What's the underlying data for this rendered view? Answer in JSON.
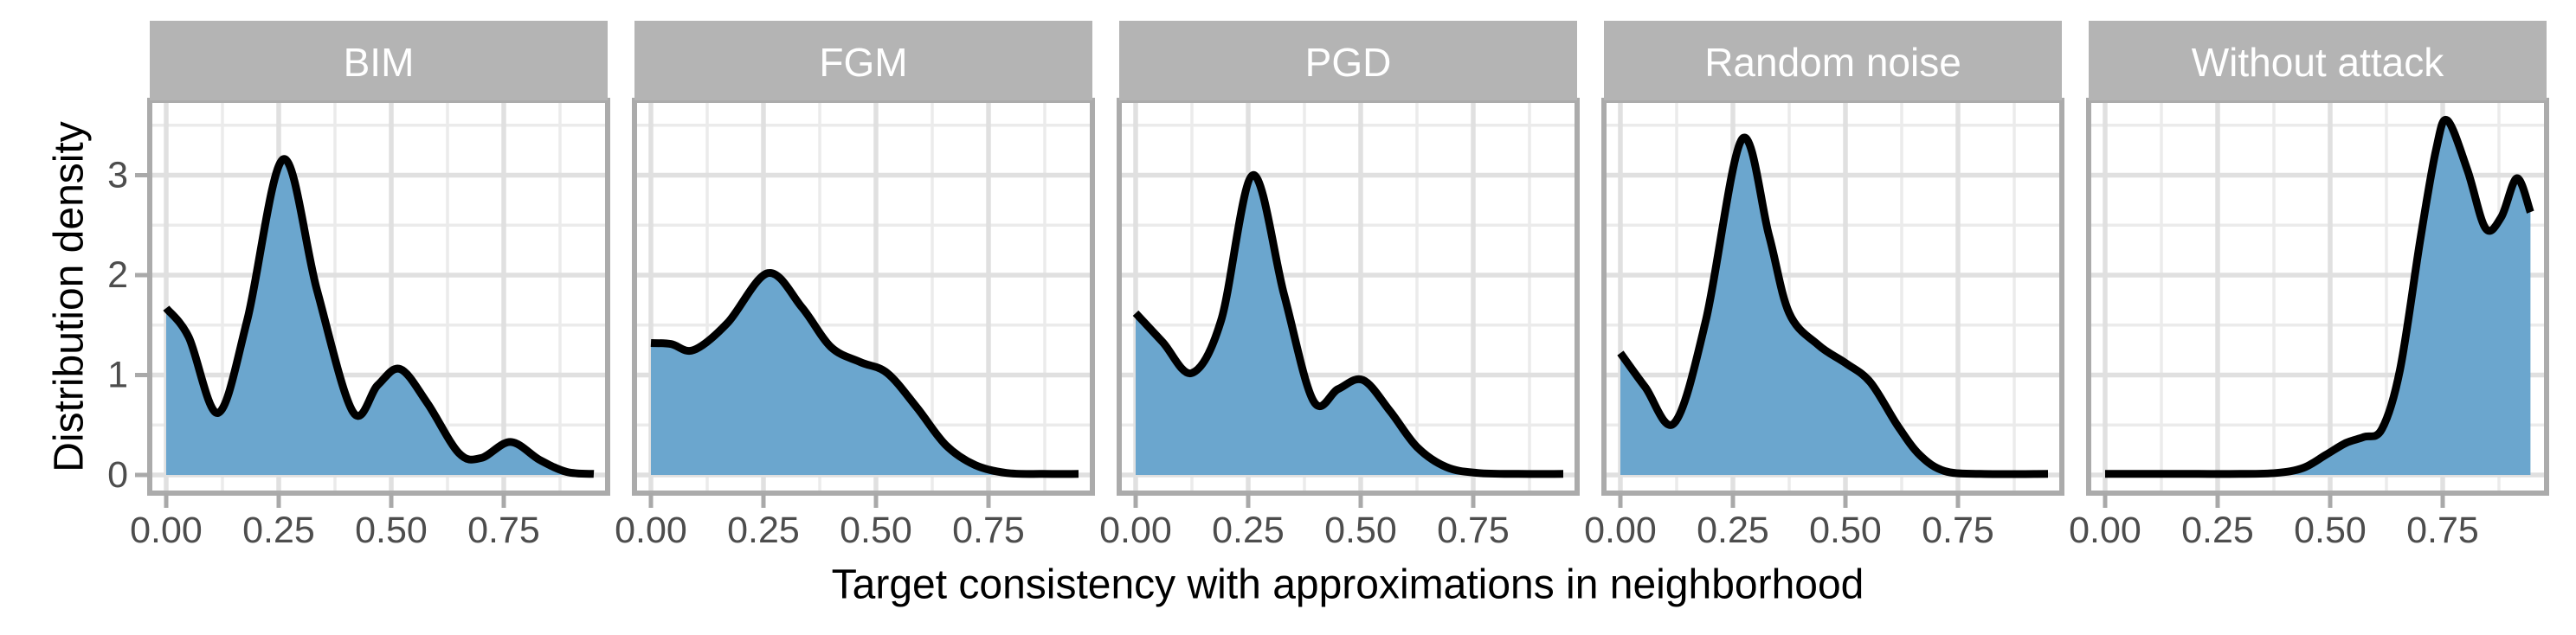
{
  "figure": {
    "xlabel": "Target consistency with approximations in neighborhood",
    "ylabel": "Distribution density"
  },
  "chart_data": {
    "type": "area",
    "subtype": "faceted-density",
    "title": "",
    "xlabel": "Target consistency with approximations in neighborhood",
    "ylabel": "Distribution density",
    "legend": "none",
    "grid": true,
    "xlim": [
      -0.037,
      0.981
    ],
    "ylim": [
      -0.18,
      3.75
    ],
    "x_ticks": {
      "values": [
        0,
        0.25,
        0.5,
        0.75
      ],
      "labels": [
        "0.00",
        "0.25",
        "0.50",
        "0.75"
      ]
    },
    "y_ticks": {
      "values": [
        0,
        1,
        2,
        3
      ],
      "labels": [
        "0",
        "1",
        "2",
        "3"
      ]
    },
    "x_minor": [
      0.125,
      0.375,
      0.625,
      0.875
    ],
    "y_minor": [
      0.5,
      1.5,
      2.5,
      3.5
    ],
    "facets": [
      {
        "label": "BIM",
        "fill_to_baseline": true,
        "points": [
          [
            0.0,
            1.67
          ],
          [
            0.05,
            1.38
          ],
          [
            0.115,
            0.62
          ],
          [
            0.18,
            1.55
          ],
          [
            0.26,
            3.16
          ],
          [
            0.335,
            1.85
          ],
          [
            0.415,
            0.63
          ],
          [
            0.47,
            0.9
          ],
          [
            0.52,
            1.06
          ],
          [
            0.58,
            0.72
          ],
          [
            0.65,
            0.22
          ],
          [
            0.7,
            0.17
          ],
          [
            0.765,
            0.33
          ],
          [
            0.83,
            0.15
          ],
          [
            0.89,
            0.03
          ],
          [
            0.95,
            0.01
          ]
        ]
      },
      {
        "label": "FGM",
        "fill_to_baseline": true,
        "points": [
          [
            0.0,
            1.32
          ],
          [
            0.045,
            1.31
          ],
          [
            0.095,
            1.25
          ],
          [
            0.17,
            1.52
          ],
          [
            0.26,
            2.02
          ],
          [
            0.335,
            1.68
          ],
          [
            0.4,
            1.28
          ],
          [
            0.465,
            1.13
          ],
          [
            0.525,
            1.02
          ],
          [
            0.59,
            0.68
          ],
          [
            0.655,
            0.3
          ],
          [
            0.72,
            0.1
          ],
          [
            0.79,
            0.02
          ],
          [
            0.87,
            0.01
          ],
          [
            0.95,
            0.01
          ]
        ]
      },
      {
        "label": "PGD",
        "fill_to_baseline": true,
        "points": [
          [
            0.0,
            1.62
          ],
          [
            0.06,
            1.33
          ],
          [
            0.125,
            1.02
          ],
          [
            0.19,
            1.55
          ],
          [
            0.26,
            3.0
          ],
          [
            0.33,
            1.8
          ],
          [
            0.395,
            0.74
          ],
          [
            0.45,
            0.86
          ],
          [
            0.505,
            0.95
          ],
          [
            0.565,
            0.64
          ],
          [
            0.625,
            0.28
          ],
          [
            0.69,
            0.08
          ],
          [
            0.76,
            0.02
          ],
          [
            0.85,
            0.01
          ],
          [
            0.95,
            0.01
          ]
        ]
      },
      {
        "label": "Random noise",
        "fill_to_baseline": true,
        "points": [
          [
            0.0,
            1.22
          ],
          [
            0.055,
            0.88
          ],
          [
            0.12,
            0.52
          ],
          [
            0.19,
            1.55
          ],
          [
            0.27,
            3.36
          ],
          [
            0.33,
            2.4
          ],
          [
            0.375,
            1.62
          ],
          [
            0.44,
            1.3
          ],
          [
            0.5,
            1.12
          ],
          [
            0.555,
            0.93
          ],
          [
            0.615,
            0.5
          ],
          [
            0.665,
            0.2
          ],
          [
            0.72,
            0.04
          ],
          [
            0.8,
            0.01
          ],
          [
            0.95,
            0.01
          ]
        ]
      },
      {
        "label": "Without attack",
        "fill_to_baseline": true,
        "points": [
          [
            0.0,
            0.01
          ],
          [
            0.1,
            0.01
          ],
          [
            0.2,
            0.01
          ],
          [
            0.3,
            0.01
          ],
          [
            0.38,
            0.02
          ],
          [
            0.44,
            0.07
          ],
          [
            0.49,
            0.2
          ],
          [
            0.535,
            0.32
          ],
          [
            0.575,
            0.38
          ],
          [
            0.615,
            0.46
          ],
          [
            0.655,
            1.05
          ],
          [
            0.7,
            2.35
          ],
          [
            0.735,
            3.25
          ],
          [
            0.76,
            3.55
          ],
          [
            0.805,
            3.05
          ],
          [
            0.845,
            2.47
          ],
          [
            0.88,
            2.58
          ],
          [
            0.915,
            2.97
          ],
          [
            0.945,
            2.63
          ]
        ]
      }
    ],
    "style": {
      "area_fill": "#6BA6CE",
      "curve_stroke": "#000000",
      "strip_bg": "#B4B4B4",
      "strip_text": "#FFFFFF",
      "panel_bg": "#FFFFFF",
      "panel_border": "#ABABAB",
      "grid_major": "#E0E0E0",
      "grid_minor": "#EBEBEB",
      "tick_mark": "#A9A9A9",
      "tick_label": "#4D4D4D",
      "axis_title": "#000000"
    }
  }
}
